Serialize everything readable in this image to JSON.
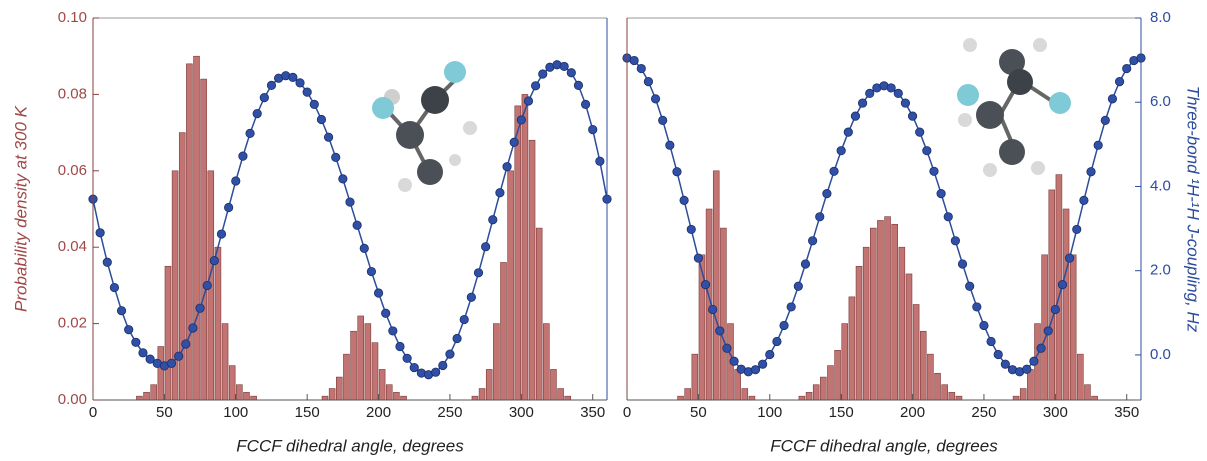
{
  "chart_data": [
    {
      "type": "histogram",
      "xlabel": "FCCF dihedral angle, degrees",
      "ylabel": "Probability density at 300 K",
      "xlim": [
        0,
        360
      ],
      "xticks": [
        0,
        50,
        100,
        150,
        200,
        250,
        300,
        350
      ],
      "ylim": [
        0,
        0.1
      ],
      "yticks": [
        {
          "value": 0,
          "label": "0.00"
        },
        {
          "value": 0.02,
          "label": "0.02"
        },
        {
          "value": 0.04,
          "label": "0.04"
        },
        {
          "value": 0.06,
          "label": "0.06"
        },
        {
          "value": 0.08,
          "label": "0.08"
        },
        {
          "value": 0.1,
          "label": "0.10"
        }
      ],
      "y2lim": [
        -1.07,
        8.0
      ],
      "color": "#c27473",
      "bins": [
        0,
        5,
        10,
        15,
        20,
        25,
        30,
        35,
        40,
        45,
        50,
        55,
        60,
        65,
        70,
        75,
        80,
        85,
        90,
        95,
        100,
        105,
        110,
        115,
        120,
        125,
        130,
        135,
        140,
        145,
        150,
        155,
        160,
        165,
        170,
        175,
        180,
        185,
        190,
        195,
        200,
        205,
        210,
        215,
        220,
        225,
        230,
        235,
        240,
        245,
        250,
        255,
        260,
        265,
        270,
        275,
        280,
        285,
        290,
        295,
        300,
        305,
        310,
        315,
        320,
        325,
        330,
        335,
        340,
        345,
        350,
        355,
        360
      ],
      "values": [
        0,
        0,
        0,
        0,
        0,
        0,
        0.001,
        0.002,
        0.004,
        0.014,
        0.035,
        0.06,
        0.07,
        0.088,
        0.09,
        0.084,
        0.06,
        0.04,
        0.02,
        0.009,
        0.004,
        0.002,
        0.001,
        0,
        0,
        0,
        0,
        0,
        0,
        0,
        0,
        0,
        0.001,
        0.003,
        0.006,
        0.012,
        0.018,
        0.022,
        0.02,
        0.015,
        0.008,
        0.004,
        0.002,
        0.001,
        0,
        0,
        0,
        0,
        0,
        0,
        0,
        0,
        0,
        0.001,
        0.003,
        0.008,
        0.02,
        0.036,
        0.06,
        0.077,
        0.08,
        0.068,
        0.045,
        0.02,
        0.008,
        0.003,
        0.001,
        0,
        0,
        0,
        0,
        0
      ],
      "overlay": {
        "type": "line",
        "axis": "y2",
        "color": "#2c4c9c",
        "x": [
          0,
          5,
          10,
          15,
          20,
          25,
          30,
          35,
          40,
          45,
          50,
          55,
          60,
          65,
          70,
          75,
          80,
          85,
          90,
          95,
          100,
          105,
          110,
          115,
          120,
          125,
          130,
          135,
          140,
          145,
          150,
          155,
          160,
          165,
          170,
          175,
          180,
          185,
          190,
          195,
          200,
          205,
          210,
          215,
          220,
          225,
          230,
          235,
          240,
          245,
          250,
          255,
          260,
          265,
          270,
          275,
          280,
          285,
          290,
          295,
          300,
          305,
          310,
          315,
          320,
          325,
          330,
          335,
          340,
          345,
          350,
          355,
          360
        ],
        "values": [
          3.7,
          2.9,
          2.2,
          1.6,
          1.05,
          0.6,
          0.3,
          0.05,
          -0.1,
          -0.2,
          -0.26,
          -0.2,
          -0.03,
          0.26,
          0.64,
          1.11,
          1.65,
          2.24,
          2.87,
          3.5,
          4.13,
          4.72,
          5.26,
          5.73,
          6.11,
          6.4,
          6.57,
          6.63,
          6.59,
          6.46,
          6.24,
          5.95,
          5.59,
          5.17,
          4.69,
          4.18,
          3.63,
          3.08,
          2.53,
          1.98,
          1.47,
          0.99,
          0.57,
          0.2,
          -0.08,
          -0.3,
          -0.43,
          -0.47,
          -0.41,
          -0.25,
          0.02,
          0.39,
          0.84,
          1.37,
          1.95,
          2.57,
          3.21,
          3.85,
          4.47,
          5.05,
          5.58,
          6.03,
          6.39,
          6.67,
          6.83,
          6.89,
          6.85,
          6.7,
          6.4,
          5.95,
          5.35,
          4.6,
          3.7
        ]
      }
    },
    {
      "type": "histogram",
      "xlabel": "FCCF dihedral angle, degrees",
      "y2label": "Three-bond ¹H-¹H J-coupling, Hz",
      "xlim": [
        0,
        360
      ],
      "xticks": [
        0,
        50,
        100,
        150,
        200,
        250,
        300,
        350
      ],
      "ylim": [
        0,
        0.1
      ],
      "y2lim": [
        -1.07,
        8.0
      ],
      "y2ticks": [
        {
          "value": 0,
          "label": "0.0"
        },
        {
          "value": 2,
          "label": "2.0"
        },
        {
          "value": 4,
          "label": "4.0"
        },
        {
          "value": 6,
          "label": "6.0"
        },
        {
          "value": 8,
          "label": "8.0"
        }
      ],
      "color": "#c27473",
      "bins": [
        0,
        5,
        10,
        15,
        20,
        25,
        30,
        35,
        40,
        45,
        50,
        55,
        60,
        65,
        70,
        75,
        80,
        85,
        90,
        95,
        100,
        105,
        110,
        115,
        120,
        125,
        130,
        135,
        140,
        145,
        150,
        155,
        160,
        165,
        170,
        175,
        180,
        185,
        190,
        195,
        200,
        205,
        210,
        215,
        220,
        225,
        230,
        235,
        240,
        245,
        250,
        255,
        260,
        265,
        270,
        275,
        280,
        285,
        290,
        295,
        300,
        305,
        310,
        315,
        320,
        325,
        330,
        335,
        340,
        345,
        350,
        355,
        360
      ],
      "values": [
        0,
        0,
        0,
        0,
        0,
        0,
        0,
        0.001,
        0.003,
        0.012,
        0.038,
        0.05,
        0.06,
        0.045,
        0.02,
        0.008,
        0.003,
        0.001,
        0,
        0,
        0,
        0,
        0,
        0,
        0.001,
        0.002,
        0.004,
        0.006,
        0.009,
        0.013,
        0.02,
        0.027,
        0.035,
        0.04,
        0.045,
        0.047,
        0.048,
        0.046,
        0.04,
        0.033,
        0.025,
        0.018,
        0.012,
        0.007,
        0.004,
        0.002,
        0.001,
        0,
        0,
        0,
        0,
        0,
        0,
        0,
        0.001,
        0.003,
        0.008,
        0.02,
        0.038,
        0.055,
        0.059,
        0.05,
        0.038,
        0.012,
        0.004,
        0.001,
        0,
        0,
        0,
        0,
        0,
        0
      ],
      "overlay": {
        "type": "line",
        "axis": "y2",
        "color": "#2c4c9c",
        "x": [
          0,
          5,
          10,
          15,
          20,
          25,
          30,
          35,
          40,
          45,
          50,
          55,
          60,
          65,
          70,
          75,
          80,
          85,
          90,
          95,
          100,
          105,
          110,
          115,
          120,
          125,
          130,
          135,
          140,
          145,
          150,
          155,
          160,
          165,
          170,
          175,
          180,
          185,
          190,
          195,
          200,
          205,
          210,
          215,
          220,
          225,
          230,
          235,
          240,
          245,
          250,
          255,
          260,
          265,
          270,
          275,
          280,
          285,
          290,
          295,
          300,
          305,
          310,
          315,
          320,
          325,
          330,
          335,
          340,
          345,
          350,
          355,
          360
        ],
        "values": [
          7.05,
          6.99,
          6.8,
          6.49,
          6.08,
          5.57,
          4.98,
          4.35,
          3.67,
          2.98,
          2.3,
          1.67,
          1.08,
          0.57,
          0.16,
          -0.15,
          -0.34,
          -0.4,
          -0.35,
          -0.22,
          0.01,
          0.32,
          0.7,
          1.14,
          1.63,
          2.16,
          2.71,
          3.28,
          3.83,
          4.36,
          4.85,
          5.29,
          5.67,
          5.98,
          6.21,
          6.34,
          6.39,
          6.34,
          6.21,
          5.98,
          5.67,
          5.29,
          4.85,
          4.36,
          3.83,
          3.28,
          2.71,
          2.16,
          1.63,
          1.14,
          0.7,
          0.32,
          0.01,
          -0.22,
          -0.35,
          -0.4,
          -0.34,
          -0.15,
          0.16,
          0.57,
          1.08,
          1.67,
          2.3,
          2.98,
          3.67,
          4.35,
          4.98,
          5.57,
          6.08,
          6.49,
          6.8,
          6.99,
          7.05
        ]
      }
    }
  ]
}
